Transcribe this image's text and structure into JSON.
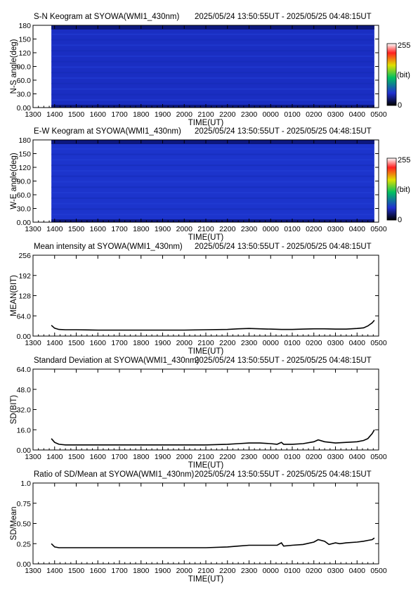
{
  "time_axis": {
    "xlabel": "TIME(UT)",
    "tick_labels": [
      "1300",
      "1400",
      "1500",
      "1600",
      "1700",
      "1800",
      "1900",
      "2000",
      "2100",
      "2200",
      "2300",
      "0000",
      "0100",
      "0200",
      "0300",
      "0400",
      "0500"
    ]
  },
  "colorbar": {
    "max_label": "255",
    "unit_label": "(bit)",
    "min_label": "0"
  },
  "chart_data": [
    {
      "type": "heatmap",
      "title": "S-N Keogram at SYOWA(WMI1_430nm)",
      "time_range": "2025/05/24 13:50:55UT - 2025/05/25 04:48:15UT",
      "ylabel": "N-S angle(deg)",
      "ylim": [
        0,
        180
      ],
      "yticks": [
        "0.00",
        "30.0",
        "60.0",
        "90.0",
        "120",
        "150",
        "180"
      ],
      "xlim": [
        13.0,
        29.0
      ],
      "data_start": 13.85,
      "data_end": 28.8,
      "value_range": [
        0,
        255
      ],
      "colormap": [
        "#000000",
        "#2030d0",
        "#00c060",
        "#e0e000",
        "#ff2020",
        "#ffffff"
      ],
      "base_color": "#1a2ec2"
    },
    {
      "type": "heatmap",
      "title": "E-W Keogram at SYOWA(WMI1_430nm)",
      "time_range": "2025/05/24 13:50:55UT - 2025/05/25 04:48:15UT",
      "ylabel": "W-E angle(deg)",
      "ylim": [
        0,
        180
      ],
      "yticks": [
        "0.00",
        "30.0",
        "60.0",
        "90.0",
        "120",
        "150",
        "180"
      ],
      "xlim": [
        13.0,
        29.0
      ],
      "data_start": 13.85,
      "data_end": 28.8,
      "value_range": [
        0,
        255
      ],
      "colormap": [
        "#000000",
        "#2030d0",
        "#00c060",
        "#e0e000",
        "#ff2020",
        "#ffffff"
      ],
      "base_color": "#1c34cc"
    },
    {
      "type": "line",
      "title": "Mean intensity at SYOWA(WMI1_430nm)",
      "time_range": "2025/05/24 13:50:55UT - 2025/05/25 04:48:15UT",
      "ylabel": "MEAN(BIT)",
      "ylim": [
        0,
        256
      ],
      "yticks": [
        "0.00",
        "64.0",
        "128",
        "192",
        "256"
      ],
      "xlim": [
        13.0,
        29.0
      ],
      "x": [
        13.85,
        14.0,
        14.2,
        14.5,
        15.0,
        16.0,
        17.0,
        18.0,
        19.0,
        20.0,
        21.0,
        22.0,
        22.5,
        23.0,
        23.5,
        24.0,
        24.5,
        25.0,
        25.5,
        26.0,
        26.5,
        27.0,
        27.5,
        28.0,
        28.3,
        28.5,
        28.7,
        28.8
      ],
      "y": [
        34,
        25,
        21,
        20,
        20,
        19,
        19,
        19,
        19,
        19,
        20,
        21,
        23,
        24,
        23,
        22,
        21,
        21,
        22,
        23,
        23,
        22,
        22,
        24,
        26,
        32,
        42,
        50
      ]
    },
    {
      "type": "line",
      "title": "Standard Deviation at SYOWA(WMI1_430nm)",
      "time_range": "2025/05/24 13:50:55UT - 2025/05/25 04:48:15UT",
      "ylabel": "SD(BIT)",
      "ylim": [
        0,
        64
      ],
      "yticks": [
        "0.00",
        "16.0",
        "32.0",
        "48.0",
        "64.0"
      ],
      "xlim": [
        13.0,
        29.0
      ],
      "x": [
        13.85,
        14.0,
        14.2,
        14.5,
        15.0,
        16.0,
        17.0,
        18.0,
        19.0,
        20.0,
        21.0,
        22.0,
        22.5,
        23.0,
        23.5,
        24.0,
        24.3,
        24.5,
        24.6,
        25.0,
        25.5,
        26.0,
        26.2,
        26.5,
        27.0,
        27.5,
        28.0,
        28.3,
        28.5,
        28.7,
        28.8
      ],
      "y": [
        9,
        6,
        4.5,
        4,
        4,
        4,
        4,
        4,
        4,
        4,
        4,
        4.5,
        5,
        5.5,
        5.5,
        5,
        4.5,
        6,
        4.5,
        4.5,
        5,
        6.5,
        8,
        6.5,
        5.5,
        6,
        6.5,
        7.5,
        9,
        13,
        16
      ]
    },
    {
      "type": "line",
      "title": "Ratio of SD/Mean at SYOWA(WMI1_430nm)",
      "time_range": "2025/05/24 13:50:55UT - 2025/05/25 04:48:15UT",
      "ylabel": "SD/Mean",
      "ylim": [
        0,
        1.0
      ],
      "yticks": [
        "0.00",
        "0.25",
        "0.50",
        "0.75",
        "1.0"
      ],
      "xlim": [
        13.0,
        29.0
      ],
      "x": [
        13.85,
        14.0,
        14.2,
        14.5,
        15.0,
        16.0,
        17.0,
        18.0,
        19.0,
        20.0,
        21.0,
        22.0,
        22.5,
        23.0,
        23.5,
        24.0,
        24.3,
        24.5,
        24.6,
        25.0,
        25.5,
        26.0,
        26.2,
        26.5,
        26.7,
        27.0,
        27.2,
        27.5,
        28.0,
        28.3,
        28.5,
        28.7,
        28.8
      ],
      "y": [
        0.25,
        0.21,
        0.2,
        0.2,
        0.2,
        0.2,
        0.2,
        0.2,
        0.2,
        0.2,
        0.2,
        0.21,
        0.22,
        0.23,
        0.23,
        0.23,
        0.23,
        0.26,
        0.22,
        0.23,
        0.24,
        0.27,
        0.3,
        0.28,
        0.24,
        0.26,
        0.25,
        0.26,
        0.27,
        0.28,
        0.29,
        0.3,
        0.32
      ]
    }
  ]
}
